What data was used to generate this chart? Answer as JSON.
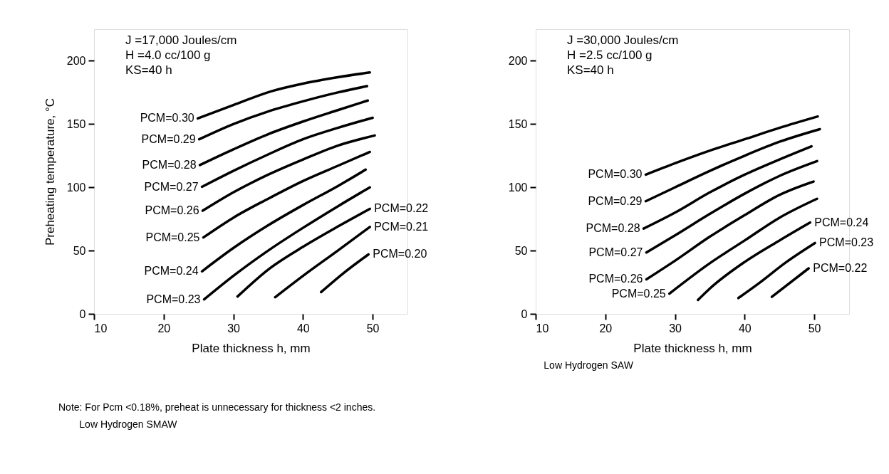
{
  "chart_data": [
    {
      "type": "line",
      "title": "Low Hydrogen SMAW",
      "xlabel": "Plate thickness h,   mm",
      "ylabel": "Preheating temperature, °C",
      "xlim": [
        10,
        55
      ],
      "ylim": [
        0,
        225
      ],
      "xticks": [
        10,
        20,
        30,
        40,
        50
      ],
      "yticks": [
        0,
        50,
        100,
        150,
        200
      ],
      "grid": false,
      "marker": "none",
      "line_style": "solid",
      "annotations": [
        "J =17,000  Joules/cm",
        "H =4.0  cc/100 g",
        "KS=40 h",
        "Note: For Pcm <0.18%, preheat is unnecessary for thickness <2 inches."
      ],
      "series": [
        {
          "name": "PCM=0.30",
          "color": "#000000",
          "x": [
            24.9,
            30,
            35.5,
            40,
            45,
            49.6
          ],
          "values": [
            154.5,
            165,
            176,
            182,
            187,
            190.8
          ]
        },
        {
          "name": "PCM=0.29",
          "color": "#000000",
          "x": [
            25.1,
            30,
            35,
            40,
            45,
            49.2
          ],
          "values": [
            138,
            150,
            160,
            168,
            175,
            180
          ]
        },
        {
          "name": "PCM=0.28",
          "color": "#000000",
          "x": [
            25.2,
            30,
            35,
            40,
            45,
            49.3
          ],
          "values": [
            117.6,
            130,
            142,
            152,
            161,
            168.6
          ]
        },
        {
          "name": "PCM=0.27",
          "color": "#000000",
          "x": [
            25.5,
            30,
            35,
            40,
            45,
            50
          ],
          "values": [
            100.4,
            113,
            126,
            138,
            147,
            155
          ]
        },
        {
          "name": "PCM=0.26",
          "color": "#000000",
          "x": [
            25.6,
            30,
            35,
            40,
            45,
            50.3
          ],
          "values": [
            81.5,
            96,
            110,
            122,
            133,
            141
          ]
        },
        {
          "name": "PCM=0.25",
          "color": "#000000",
          "x": [
            25.7,
            30,
            35,
            40,
            45,
            49.6
          ],
          "values": [
            60.4,
            76,
            91,
            105,
            117,
            128
          ]
        },
        {
          "name": "PCM=0.24",
          "color": "#000000",
          "x": [
            25.5,
            30,
            35,
            40,
            45,
            49
          ],
          "values": [
            33.6,
            52,
            70,
            86,
            101,
            114
          ]
        },
        {
          "name": "PCM=0.23",
          "color": "#000000",
          "x": [
            25.8,
            30,
            35,
            40,
            45,
            49.6
          ],
          "values": [
            11.4,
            30,
            50,
            68,
            85,
            100
          ]
        },
        {
          "name": "PCM=0.22",
          "color": "#000000",
          "x": [
            30.6,
            35,
            40,
            45,
            49.6
          ],
          "values": [
            13.7,
            35,
            53,
            69,
            83
          ]
        },
        {
          "name": "PCM=0.21",
          "color": "#000000",
          "x": [
            36,
            40,
            45,
            49.6
          ],
          "values": [
            13.1,
            30,
            50,
            68.7
          ]
        },
        {
          "name": "PCM=0.20",
          "color": "#000000",
          "x": [
            42.6,
            46,
            49.4
          ],
          "values": [
            17.2,
            33,
            47
          ]
        }
      ]
    },
    {
      "type": "line",
      "title": "Low Hydrogen SAW",
      "xlabel": "Plate thickness h,   mm",
      "xlim": [
        10,
        55
      ],
      "ylim": [
        0,
        225
      ],
      "xticks": [
        10,
        20,
        30,
        40,
        50
      ],
      "yticks": [
        0,
        50,
        100,
        150,
        200
      ],
      "grid": false,
      "marker": "none",
      "line_style": "solid",
      "annotations": [
        "J =30,000  Joules/cm",
        "H =2.5  cc/100 g",
        "KS=40 h"
      ],
      "series": [
        {
          "name": "PCM=0.30",
          "color": "#000000",
          "x": [
            25.8,
            30,
            35,
            40,
            45,
            50.5
          ],
          "values": [
            110,
            119,
            129,
            138,
            147,
            156
          ]
        },
        {
          "name": "PCM=0.29",
          "color": "#000000",
          "x": [
            25.8,
            30,
            35,
            40,
            45,
            50.8
          ],
          "values": [
            89,
            100,
            113,
            125,
            136,
            146
          ]
        },
        {
          "name": "PCM=0.28",
          "color": "#000000",
          "x": [
            25.5,
            30,
            35,
            40,
            45,
            49.6
          ],
          "values": [
            67.4,
            80,
            96,
            110,
            122,
            132.4
          ]
        },
        {
          "name": "PCM=0.27",
          "color": "#000000",
          "x": [
            25.9,
            30,
            35,
            40,
            45,
            50.4
          ],
          "values": [
            48.5,
            62,
            79,
            95,
            109,
            120.7
          ]
        },
        {
          "name": "PCM=0.26",
          "color": "#000000",
          "x": [
            25.9,
            30,
            35,
            40,
            45,
            49.9
          ],
          "values": [
            27.3,
            42,
            61,
            78,
            94,
            104.6
          ]
        },
        {
          "name": "PCM=0.25",
          "color": "#000000",
          "x": [
            29.2,
            35,
            40,
            45,
            50.4
          ],
          "values": [
            16,
            40,
            58,
            76,
            91
          ]
        },
        {
          "name": "PCM=0.24",
          "color": "#000000",
          "x": [
            33.3,
            35,
            40,
            45,
            49.4
          ],
          "values": [
            11,
            20,
            41,
            58,
            72.2
          ]
        },
        {
          "name": "PCM=0.23",
          "color": "#000000",
          "x": [
            39.1,
            42,
            46,
            50.1
          ],
          "values": [
            12.5,
            24,
            41,
            56
          ]
        },
        {
          "name": "PCM=0.22",
          "color": "#000000",
          "x": [
            43.9,
            49.2
          ],
          "values": [
            13.4,
            36
          ]
        }
      ]
    }
  ]
}
